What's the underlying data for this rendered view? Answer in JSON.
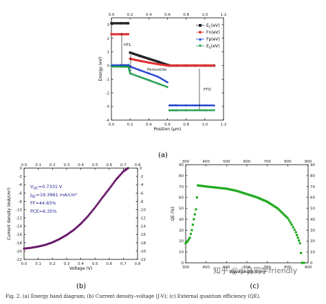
{
  "chart_data": [
    {
      "type": "line",
      "panel_label": "(a)",
      "xlabel": "Position (µm)",
      "ylabel": "Energy (eV)",
      "xlim": [
        0.0,
        1.2
      ],
      "ylim": [
        -4,
        3.5
      ],
      "x_ticks": [
        "0.0",
        "0.2",
        "0.4",
        "0.6",
        "0.8",
        "1.0",
        "1.2"
      ],
      "y_ticks": [
        "3",
        "2",
        "1",
        "0",
        "-1",
        "-2",
        "-3",
        "-4"
      ],
      "legend_position": "top-right",
      "annotations": [
        "HTL",
        "Perovskite",
        "FTO"
      ],
      "series": [
        {
          "name": "E_C(eV)",
          "color": "#222222",
          "marker": "square",
          "x": [
            0.0,
            0.1,
            0.18,
            0.2,
            0.3,
            0.4,
            0.5,
            0.6,
            0.62,
            0.7,
            0.8,
            0.9,
            1.0,
            1.1
          ],
          "y": [
            3.1,
            3.1,
            3.1,
            0.95,
            0.72,
            0.5,
            0.28,
            0.05,
            0.0,
            0.0,
            0.0,
            0.0,
            0.0,
            0.0
          ]
        },
        {
          "name": "Fn(eV)",
          "color": "#e03030",
          "marker": "circle",
          "x": [
            0.0,
            0.1,
            0.18,
            0.2,
            0.3,
            0.4,
            0.5,
            0.6,
            0.62,
            0.7,
            0.8,
            0.9,
            1.0,
            1.1
          ],
          "y": [
            2.3,
            2.3,
            2.3,
            0.5,
            0.35,
            0.22,
            0.1,
            0.0,
            0.0,
            0.0,
            0.0,
            0.0,
            0.0,
            0.0
          ]
        },
        {
          "name": "Fp(eV)",
          "color": "#1f3fd0",
          "marker": "triangle-up",
          "x": [
            0.0,
            0.1,
            0.18,
            0.2,
            0.3,
            0.4,
            0.5,
            0.6,
            0.62,
            0.7,
            0.8,
            0.9,
            1.0,
            1.1
          ],
          "y": [
            0.05,
            0.05,
            0.05,
            -0.05,
            -0.3,
            -0.55,
            -0.8,
            -1.2,
            -2.9,
            -2.9,
            -2.9,
            -2.9,
            -2.9,
            -2.9
          ]
        },
        {
          "name": "E_V(eV)",
          "color": "#1a9a4a",
          "marker": "triangle-down",
          "x": [
            0.0,
            0.1,
            0.18,
            0.2,
            0.3,
            0.4,
            0.5,
            0.6,
            0.62,
            0.7,
            0.8,
            0.9,
            1.0,
            1.1
          ],
          "y": [
            -0.1,
            -0.1,
            -0.1,
            -0.6,
            -0.85,
            -1.1,
            -1.35,
            -1.6,
            -3.3,
            -3.3,
            -3.3,
            -3.3,
            -3.3,
            -3.3
          ]
        }
      ]
    },
    {
      "type": "scatter",
      "panel_label": "(b)",
      "xlabel": "Voltage (V)",
      "ylabel": "Current density (mA/cm²)",
      "xlim": [
        0.0,
        0.8
      ],
      "ylim": [
        -22,
        0
      ],
      "x_ticks": [
        "0.0",
        "0.1",
        "0.2",
        "0.3",
        "0.4",
        "0.5",
        "0.6",
        "0.7",
        "0.8"
      ],
      "y_ticks": [
        "0",
        "-2",
        "-4",
        "-6",
        "-8",
        "-10",
        "-12",
        "-14",
        "-16",
        "-18",
        "-20",
        "-22"
      ],
      "color": "#6a1a6a",
      "annotations": {
        "voc": "V_OC=0.7331 V",
        "jsc": "J_SC=19.3961 mA/cm²",
        "ff": "FF=44.65%",
        "pce": "PCE=6.35%"
      },
      "x": [
        0.0,
        0.05,
        0.1,
        0.15,
        0.2,
        0.25,
        0.3,
        0.35,
        0.4,
        0.45,
        0.5,
        0.55,
        0.6,
        0.65,
        0.7,
        0.7331
      ],
      "y": [
        -19.4,
        -19.2,
        -18.9,
        -18.5,
        -17.9,
        -17.1,
        -16.1,
        -14.9,
        -13.4,
        -11.6,
        -9.5,
        -7.2,
        -5.0,
        -2.7,
        -0.8,
        0.0
      ]
    },
    {
      "type": "scatter",
      "panel_label": "(c)",
      "xlabel": "Wavelength (nm)",
      "ylabel": "QE (%)",
      "xlim": [
        300,
        900
      ],
      "ylim": [
        0,
        90
      ],
      "x_ticks": [
        "300",
        "400",
        "500",
        "600",
        "700",
        "800",
        "900"
      ],
      "y_ticks": [
        "0",
        "10",
        "20",
        "30",
        "40",
        "50",
        "60",
        "70",
        "80",
        "90"
      ],
      "color": "#22aa22",
      "x": [
        300,
        310,
        320,
        330,
        340,
        350,
        360,
        400,
        450,
        500,
        550,
        600,
        650,
        700,
        750,
        800,
        820,
        840,
        850,
        860,
        870,
        880
      ],
      "y": [
        18,
        20,
        23,
        30,
        40,
        49,
        71,
        70,
        69,
        68,
        66,
        63,
        60,
        56,
        50,
        41,
        35,
        28,
        23,
        18,
        0,
        0
      ]
    }
  ],
  "caption": "Fig. 2. (a) Energy band diagram; (b) Current density–voltage (J-V); (c) External quantum efficiency (QE).",
  "watermark": "知乎 @小乌同学friendly"
}
